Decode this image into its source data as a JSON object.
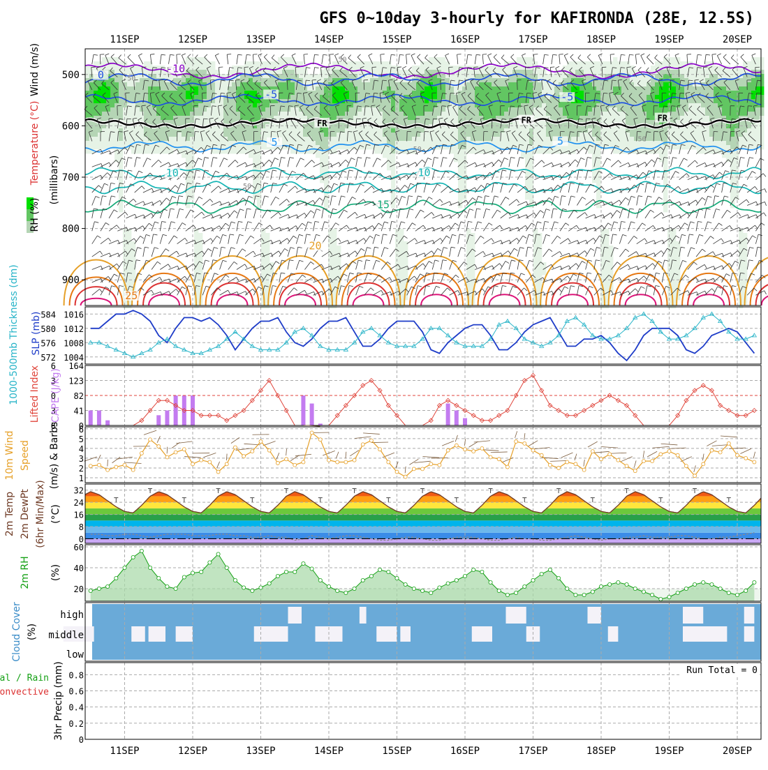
{
  "title": "GFS 0~10day 3-hourly for KAFIRONDA (28E, 12.5S)",
  "colors": {
    "rh_dark": "#00e000",
    "rh_mid": "#62c662",
    "rh_light": "#b5d5b5",
    "rh_pale": "#e6f3e6",
    "temp_purple": "#8a00c8",
    "temp_blue": "#1e50e0",
    "temp_lightblue": "#1e90f0",
    "temp_teal": "#14b4b4",
    "temp_green": "#14aa78",
    "temp_orange": "#e6a028",
    "temp_darkorange": "#e67814",
    "temp_red": "#dc3232",
    "temp_magenta": "#dc1478",
    "slp": "#1e3cc8",
    "thickness": "#28b4c8",
    "cape": "#c37cf0",
    "lifted": "#e0463c",
    "wind10": "#e6a028",
    "temp2m": "#6e3a24",
    "dew2m": "#8a8a8a",
    "rh2m": "#14a014",
    "cloud": "#6aaad8",
    "cloud_gap": "#ececec"
  },
  "chart_data": [
    {
      "panel": "upper-air",
      "type": "heatmap",
      "x_ticks": [
        "11SEP",
        "12SEP",
        "13SEP",
        "14SEP",
        "15SEP",
        "16SEP",
        "17SEP",
        "18SEP",
        "19SEP",
        "20SEP"
      ],
      "y_axis_label": "(millibars)",
      "y_ticks": [
        500,
        600,
        700,
        800,
        900
      ],
      "ylim": [
        450,
        950
      ],
      "legend": [
        "Wind (m/s)",
        "Temperature (°C)",
        "RH (%)"
      ],
      "isotherm_labels": [
        {
          "text": "-10",
          "day": 1.75,
          "p": 493,
          "series": "temp_purple"
        },
        {
          "text": "0",
          "day": 0.65,
          "p": 505,
          "series": "temp_blue"
        },
        {
          "text": "-5",
          "day": 3.15,
          "p": 543,
          "series": "temp_blue"
        },
        {
          "text": "-5",
          "day": 7.5,
          "p": 548,
          "series": "temp_blue"
        },
        {
          "text": "FR",
          "day": 3.9,
          "p": 598,
          "series": "frz"
        },
        {
          "text": "FR",
          "day": 6.9,
          "p": 592,
          "series": "frz"
        },
        {
          "text": "FR",
          "day": 8.9,
          "p": 588,
          "series": "frz"
        },
        {
          "text": "5",
          "day": 3.2,
          "p": 636,
          "series": "temp_lightblue"
        },
        {
          "text": "5",
          "day": 7.4,
          "p": 634,
          "series": "temp_lightblue"
        },
        {
          "text": "10",
          "day": 1.7,
          "p": 696,
          "series": "temp_teal"
        },
        {
          "text": "10",
          "day": 5.4,
          "p": 695,
          "series": "temp_teal"
        },
        {
          "text": "15",
          "day": 4.8,
          "p": 758,
          "series": "temp_green"
        },
        {
          "text": "20",
          "day": 3.8,
          "p": 838,
          "series": "temp_orange"
        },
        {
          "text": "25",
          "day": 1.1,
          "p": 935,
          "series": "temp_darkorange"
        }
      ],
      "rh_labels": [
        {
          "text": "50",
          "day": 1.1,
          "p": 512
        },
        {
          "text": "50",
          "day": 4.2,
          "p": 475
        },
        {
          "text": "50",
          "day": 5.3,
          "p": 650
        },
        {
          "text": "50",
          "day": 8.6,
          "p": 630
        },
        {
          "text": "50",
          "day": 2.8,
          "p": 722
        }
      ]
    },
    {
      "panel": "slp-thickness",
      "type": "line",
      "legend": [
        "1000-500mb Thickness (dm)",
        "SLP (mb)"
      ],
      "left_ticks": [
        572,
        576,
        580,
        584
      ],
      "left_lim": [
        570,
        586
      ],
      "right_ticks": [
        1004,
        1008,
        1012,
        1016
      ],
      "right_lim": [
        1002,
        1018
      ],
      "series": [
        {
          "name": "SLP (mb)",
          "axis": "right",
          "values": [
            1012,
            1012,
            1014,
            1016,
            1016,
            1017,
            1016,
            1014,
            1010,
            1008,
            1012,
            1015,
            1015,
            1014,
            1015,
            1013,
            1010,
            1006,
            1009,
            1012,
            1014,
            1014,
            1015,
            1011,
            1008,
            1007,
            1009,
            1012,
            1014,
            1014,
            1015,
            1011,
            1007,
            1007,
            1009,
            1012,
            1014,
            1014,
            1014,
            1011,
            1006,
            1005,
            1008,
            1010,
            1012,
            1013,
            1013,
            1010,
            1006,
            1006,
            1008,
            1011,
            1013,
            1014,
            1015,
            1011,
            1007,
            1007,
            1009,
            1009,
            1010,
            1008,
            1005,
            1003,
            1006,
            1010,
            1012,
            1012,
            1012,
            1010,
            1006,
            1005,
            1007,
            1010,
            1011,
            1012,
            1011,
            1008,
            1005,
            1006,
            1009,
            1011,
            1012,
            1013,
            1015,
            1016,
            1018
          ]
        },
        {
          "name": "1000-500mb Thickness (dm)",
          "axis": "left",
          "values": [
            576,
            576,
            575,
            574,
            573,
            572,
            573,
            574,
            576,
            577,
            575,
            574,
            573,
            573,
            574,
            575,
            577,
            579,
            577,
            575,
            574,
            574,
            574,
            576,
            579,
            580,
            578,
            575,
            574,
            574,
            574,
            576,
            579,
            580,
            578,
            576,
            575,
            575,
            575,
            577,
            580,
            580,
            578,
            576,
            575,
            575,
            575,
            577,
            581,
            582,
            580,
            577,
            576,
            575,
            576,
            578,
            582,
            583,
            581,
            578,
            577,
            577,
            578,
            580,
            583,
            584,
            582,
            579,
            577,
            577,
            578,
            580,
            583,
            584,
            582,
            579,
            577,
            577,
            578,
            580,
            583,
            582,
            579,
            576,
            574,
            573,
            574
          ]
        }
      ]
    },
    {
      "panel": "cape-lifted-index",
      "type": "bar",
      "legend": [
        "CAPE (J/kg)",
        "Lifted Index"
      ],
      "left_ticks": [
        -6,
        -3,
        0,
        3,
        6
      ],
      "left_lim": [
        -6,
        6
      ],
      "right_ticks": [
        0,
        41,
        82,
        123,
        164
      ],
      "right_lim": [
        0,
        164
      ],
      "cape": [
        41,
        41,
        14,
        0,
        0,
        0,
        0,
        0,
        28,
        41,
        82,
        82,
        82,
        0,
        0,
        0,
        0,
        0,
        0,
        0,
        0,
        0,
        0,
        0,
        0,
        82,
        60,
        5,
        0,
        0,
        0,
        0,
        0,
        0,
        0,
        0,
        0,
        0,
        0,
        0,
        0,
        0,
        60,
        41,
        20,
        0,
        0,
        0,
        0,
        0,
        0,
        0,
        0,
        0,
        0,
        0,
        0,
        0,
        0,
        0,
        0,
        0,
        0,
        0,
        0,
        0,
        0,
        0,
        0,
        0,
        0,
        0,
        0,
        0,
        0,
        0,
        0,
        0,
        0,
        0,
        0,
        0,
        0,
        0,
        0,
        0,
        0,
        0,
        0,
        0,
        0,
        0,
        0,
        0,
        0,
        0,
        0,
        0
      ],
      "lifted_index": [
        6,
        6,
        6,
        6,
        6,
        6,
        5,
        3,
        1,
        1,
        2,
        3,
        3,
        4,
        4,
        4,
        5,
        4,
        3,
        1,
        -1,
        -3,
        0,
        3,
        6,
        6,
        6,
        6,
        6,
        4,
        2,
        0,
        -2,
        -3,
        -1,
        2,
        4,
        6,
        6,
        6,
        5,
        2,
        1,
        2,
        3,
        4,
        5,
        5,
        4,
        3,
        0,
        -3,
        -4,
        -1,
        2,
        3,
        4,
        4,
        3,
        2,
        1,
        0,
        1,
        2,
        4,
        6,
        6,
        6,
        6,
        4,
        1,
        -1,
        -2,
        -1,
        2,
        3,
        4,
        4,
        3,
        2,
        2,
        0,
        -1,
        2,
        3,
        4,
        5,
        3,
        1,
        0,
        -1,
        -1,
        -2,
        -3,
        0,
        2,
        -1,
        -4,
        -6
      ],
      "ref_line": 0
    },
    {
      "panel": "wind-10m",
      "type": "line",
      "legend": [
        "10m Wind Speed (m/s) & Barbs"
      ],
      "y_ticks": [
        1,
        2,
        3,
        4,
        5,
        6
      ],
      "ylim": [
        0.5,
        6.2
      ],
      "values": [
        2.2,
        2.3,
        1.8,
        2.1,
        2.3,
        1.8,
        3.5,
        4.9,
        4.2,
        3.1,
        3.6,
        3.9,
        2.4,
        2.8,
        2.6,
        1.6,
        2.4,
        4.1,
        3.2,
        3.7,
        4.7,
        3.8,
        2.5,
        2.9,
        2.3,
        2.6,
        5.6,
        4.9,
        2.8,
        2.6,
        2.6,
        2.8,
        4.4,
        4.8,
        3.9,
        2.6,
        1.6,
        1.1,
        1.9,
        1.9,
        2.4,
        2.3,
        3.8,
        4.3,
        3.9,
        3.7,
        4.0,
        3.1,
        2.9,
        2.1,
        4.7,
        4.5,
        3.8,
        3.3,
        2.3,
        2.0,
        2.6,
        2.4,
        1.8,
        3.7,
        2.9,
        3.4,
        2.8,
        2.2,
        1.7,
        2.7,
        2.7,
        3.4,
        3.7,
        3.3,
        2.2,
        1.2,
        2.4,
        3.8,
        3.6,
        4.5,
        3.3,
        3.0,
        2.6,
        1.8,
        2.6,
        3.2,
        4.8,
        5.2,
        5.1,
        5.2,
        4.9,
        4.2,
        3.5,
        3.9,
        4.6,
        6.0
      ]
    },
    {
      "panel": "temp-2m",
      "type": "area",
      "legend": [
        "2m Temp",
        "2m DewPt",
        "(6hr Min/Max)"
      ],
      "unit": "(°C)",
      "y_ticks": [
        0,
        8,
        16,
        24,
        32
      ],
      "ylim": [
        -3,
        36
      ],
      "temp_day": [
        0,
        0.125,
        0.25,
        0.375,
        0.5,
        0.625,
        0.75,
        0.875,
        1
      ],
      "temp_shape": [
        18,
        17,
        22,
        28,
        31,
        29,
        25,
        21,
        18
      ],
      "min_temp_by_day": [
        19,
        18,
        18,
        19,
        19,
        19,
        20,
        20,
        20,
        20
      ],
      "dewpoint": [
        3,
        3,
        2,
        2,
        3,
        3,
        2,
        1,
        2,
        3,
        3,
        3,
        2,
        2,
        2,
        3,
        3,
        2,
        2,
        1,
        1,
        2,
        1,
        1,
        -1,
        0,
        2,
        1,
        0,
        1,
        2,
        2,
        1,
        0,
        -1,
        -1,
        0,
        1,
        1,
        0,
        -1,
        -1,
        0,
        1,
        1,
        1,
        0,
        -1,
        -1,
        0,
        1,
        0,
        0,
        -1,
        -1,
        0,
        1,
        2,
        1,
        0,
        -1,
        0,
        0,
        1,
        1,
        2,
        1,
        1,
        1,
        2,
        2,
        1,
        0,
        0,
        1,
        1,
        2,
        3,
        4,
        4,
        6,
        7,
        9,
        11,
        12,
        13,
        12,
        12,
        10,
        9,
        9,
        10
      ],
      "bands": [
        0,
        4,
        8,
        12,
        16,
        20,
        24,
        28,
        32
      ]
    },
    {
      "panel": "rh-2m",
      "type": "area",
      "legend": [
        "2m RH"
      ],
      "unit": "(%)",
      "y_ticks": [
        20,
        40,
        60
      ],
      "ylim": [
        8,
        62
      ],
      "values": [
        18,
        20,
        22,
        30,
        40,
        50,
        56,
        40,
        30,
        22,
        20,
        31,
        35,
        36,
        45,
        53,
        40,
        28,
        21,
        18,
        21,
        25,
        32,
        36,
        36,
        44,
        39,
        28,
        22,
        18,
        16,
        20,
        28,
        32,
        38,
        36,
        30,
        24,
        20,
        18,
        16,
        21,
        25,
        28,
        32,
        38,
        36,
        26,
        18,
        14,
        16,
        22,
        28,
        34,
        38,
        30,
        20,
        14,
        14,
        17,
        22,
        24,
        26,
        24,
        20,
        17,
        14,
        10,
        12,
        16,
        20,
        24,
        26,
        24,
        20,
        16,
        14,
        18,
        26,
        30,
        34,
        28,
        20,
        14,
        16,
        20,
        24,
        28,
        42,
        52,
        60,
        54
      ]
    },
    {
      "panel": "cloud-cover",
      "type": "table",
      "legend": [
        "Cloud Cover",
        "(%)"
      ],
      "layers": [
        "high",
        "middle",
        "low"
      ],
      "high_gaps": [
        [
          3.4,
          3.6
        ],
        [
          4.45,
          4.55
        ],
        [
          6.6,
          6.9
        ],
        [
          7.8,
          8.0
        ],
        [
          9.2,
          9.5
        ],
        [
          10.1,
          10.25
        ]
      ],
      "middle_gaps": [
        [
          0.1,
          0.55
        ],
        [
          1.1,
          1.3
        ],
        [
          1.35,
          1.6
        ],
        [
          1.75,
          2.0
        ],
        [
          2.9,
          3.4
        ],
        [
          3.8,
          4.2
        ],
        [
          4.7,
          5.0
        ],
        [
          5.05,
          5.2
        ],
        [
          6.1,
          6.4
        ],
        [
          6.9,
          7.1
        ],
        [
          8.1,
          8.25
        ],
        [
          9.2,
          9.6
        ],
        [
          9.6,
          9.85
        ],
        [
          10.1,
          10.25
        ]
      ]
    },
    {
      "panel": "precip-3hr",
      "type": "bar",
      "legend": [
        "Total / Rain",
        "Convective"
      ],
      "y_axis_label": "3hr Precip (mm)",
      "y_ticks": [
        0,
        0.2,
        0.4,
        0.6,
        0.8
      ],
      "y_tick_labels": [
        "0",
        "0.2",
        "0.4",
        "0.6",
        "0.8"
      ],
      "ylim": [
        0,
        0.95
      ],
      "annotation": "Run Total = 0",
      "values": []
    }
  ],
  "axis_label_texts": {
    "wind_legend": "Wind (m/s)",
    "temp_legend": "Temperature (°C)",
    "rh_legend": "RH (%)",
    "millibars": "(millibars)",
    "thickness": "1000-500mb Thickness (dm)",
    "slp": "SLP (mb)",
    "lifted": "Lifted Index",
    "cape": "CAPE (J/kg)",
    "wind10_a": "10m Wind",
    "wind10_b": "Speed",
    "wind10_c": "(m/s) & Barbs",
    "temp_a": "2m Temp",
    "temp_b": "2m DewPt",
    "temp_c": "(6hr Min/Max)",
    "temp_unit": "(°C)",
    "rh_a": "2m RH",
    "rh_unit": "(%)",
    "cloud_a": "Cloud Cover",
    "cloud_unit": "(%)",
    "precip_a": "tal / Rain",
    "precip_b": "Convective",
    "precip_c": "3hr Precip (mm)"
  }
}
